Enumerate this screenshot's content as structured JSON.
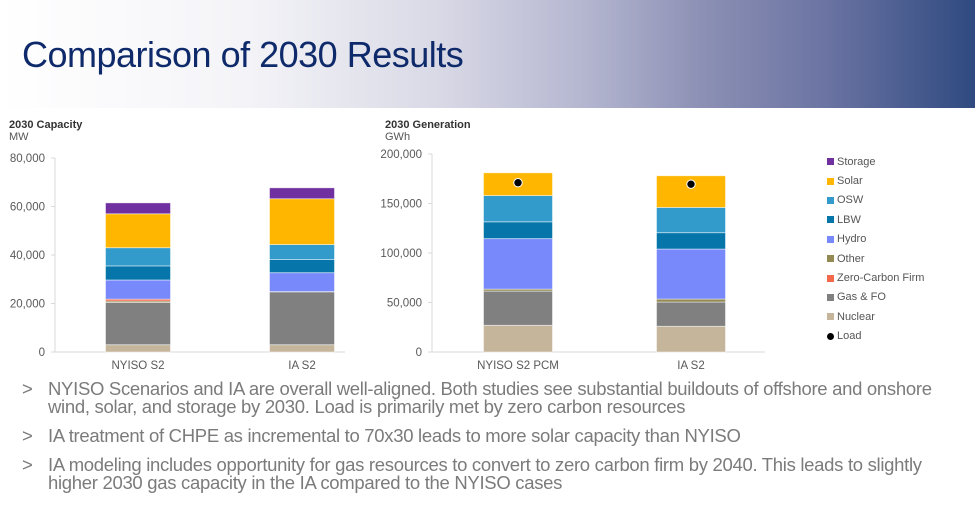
{
  "slide": {
    "title": "Comparison of 2030 Results"
  },
  "bullets": [
    "NYISO Scenarios and IA are overall well-aligned. Both studies see substantial buildouts of offshore and onshore wind, solar, and storage by 2030. Load is primarily met by zero carbon resources",
    "IA treatment of CHPE as incremental to 70x30 leads to more solar capacity than NYISO",
    "IA modeling includes opportunity for gas resources to convert to zero carbon firm by 2040. This leads to slightly higher 2030 gas capacity in the IA compared to the NYISO cases"
  ],
  "bullet_marker": ">",
  "legend": [
    {
      "label": "Storage",
      "color": "#7030a0"
    },
    {
      "label": "Solar",
      "color": "#ffb600"
    },
    {
      "label": "OSW",
      "color": "#339bcb"
    },
    {
      "label": "LBW",
      "color": "#0575aa"
    },
    {
      "label": "Hydro",
      "color": "#7889fb"
    },
    {
      "label": "Other",
      "color": "#938953"
    },
    {
      "label": "Zero-Carbon Firm",
      "color": "#f26a4b"
    },
    {
      "label": "Gas & FO",
      "color": "#808080"
    },
    {
      "label": "Nuclear",
      "color": "#c4b59b"
    },
    {
      "label": "Load",
      "color": "#000000"
    }
  ],
  "chart_data": [
    {
      "type": "bar",
      "stacked": true,
      "title": "2030 Capacity",
      "ylabel": "MW",
      "xlabel": "",
      "ylim": [
        0,
        80000
      ],
      "yticks": [
        "0",
        "20,000",
        "40,000",
        "60,000",
        "80,000"
      ],
      "ytick_values": [
        0,
        20000,
        40000,
        60000,
        80000
      ],
      "categories": [
        "NYISO S2",
        "IA S2"
      ],
      "series": [
        {
          "name": "Nuclear",
          "color": "#c4b59b",
          "values": [
            3000,
            3000
          ]
        },
        {
          "name": "Gas & FO",
          "color": "#808080",
          "values": [
            17400,
            21800
          ]
        },
        {
          "name": "Other",
          "color": "#938953",
          "values": [
            600,
            100
          ]
        },
        {
          "name": "Zero-Carbon Firm",
          "color": "#f26a4b",
          "values": [
            800,
            0
          ]
        },
        {
          "name": "Hydro",
          "color": "#7889fb",
          "values": [
            7900,
            7800
          ]
        },
        {
          "name": "LBW",
          "color": "#0575aa",
          "values": [
            5800,
            5400
          ]
        },
        {
          "name": "OSW",
          "color": "#339bcb",
          "values": [
            7500,
            6200
          ]
        },
        {
          "name": "Solar",
          "color": "#ffb600",
          "values": [
            14000,
            18900
          ]
        },
        {
          "name": "Storage",
          "color": "#7030a0",
          "values": [
            4500,
            4500
          ]
        }
      ],
      "grid": false
    },
    {
      "type": "bar",
      "stacked": true,
      "title": "2030 Generation",
      "ylabel": "GWh",
      "xlabel": "",
      "ylim": [
        0,
        200000
      ],
      "yticks": [
        "0",
        "50,000",
        "100,000",
        "150,000",
        "200,000"
      ],
      "ytick_values": [
        0,
        50000,
        100000,
        150000,
        200000
      ],
      "categories": [
        "NYISO S2 PCM",
        "IA S2"
      ],
      "series": [
        {
          "name": "Nuclear",
          "color": "#c4b59b",
          "values": [
            27000,
            26000
          ]
        },
        {
          "name": "Gas & FO",
          "color": "#808080",
          "values": [
            34500,
            24500
          ]
        },
        {
          "name": "Other",
          "color": "#938953",
          "values": [
            2000,
            3000
          ]
        },
        {
          "name": "Zero-Carbon Firm",
          "color": "#f26a4b",
          "values": [
            0,
            0
          ]
        },
        {
          "name": "Hydro",
          "color": "#7889fb",
          "values": [
            51000,
            50500
          ]
        },
        {
          "name": "LBW",
          "color": "#0575aa",
          "values": [
            17000,
            16500
          ]
        },
        {
          "name": "OSW",
          "color": "#339bcb",
          "values": [
            26500,
            25500
          ]
        },
        {
          "name": "Solar",
          "color": "#ffb600",
          "values": [
            23000,
            32000
          ]
        },
        {
          "name": "Storage",
          "color": "#7030a0",
          "values": [
            0,
            0
          ]
        }
      ],
      "load": {
        "name": "Load",
        "color": "#000000",
        "values": [
          171000,
          169500
        ]
      },
      "grid": false
    }
  ]
}
